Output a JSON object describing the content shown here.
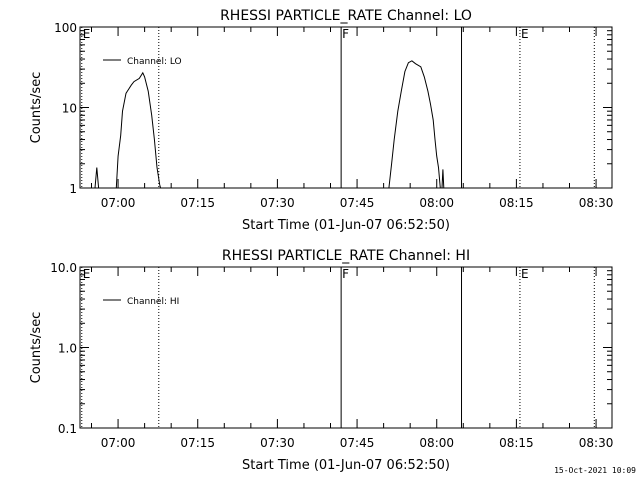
{
  "stamp": "15-Oct-2021 10:09",
  "chart_data": [
    {
      "type": "line",
      "title": "RHESSI PARTICLE_RATE Channel: LO",
      "xlabel": "Start Time (01-Jun-07 06:52:50)",
      "ylabel": "Counts/sec",
      "yscale": "log",
      "ylim": [
        1,
        100
      ],
      "xlim": [
        "06:52:50",
        "08:33:00"
      ],
      "y_ticks": [
        "1",
        "10",
        "100"
      ],
      "x_ticks": [
        "07:00",
        "07:15",
        "07:30",
        "07:45",
        "08:00",
        "08:15",
        "08:30"
      ],
      "legend": "Channel: LO",
      "legend_position": "top-left",
      "markers": [
        {
          "time": "06:53:10",
          "label": "E",
          "style": "dotted"
        },
        {
          "time": "07:07:40",
          "label": "",
          "style": "dotted"
        },
        {
          "time": "07:42:00",
          "label": "F",
          "style": "solid"
        },
        {
          "time": "08:04:40",
          "label": "",
          "style": "solid"
        },
        {
          "time": "08:15:40",
          "label": "E",
          "style": "dotted"
        },
        {
          "time": "08:29:40",
          "label": "",
          "style": "dotted"
        }
      ],
      "series": [
        {
          "name": "Channel: LO",
          "segments": [
            [
              [
                "06:55:40",
                0.9
              ],
              [
                "06:56:00",
                1.8
              ],
              [
                "06:56:20",
                0.9
              ]
            ],
            [
              [
                "06:59:40",
                0.9
              ],
              [
                "07:00:00",
                2.5
              ],
              [
                "07:00:30",
                4.5
              ],
              [
                "07:00:50",
                9
              ],
              [
                "07:01:30",
                15
              ],
              [
                "07:02:30",
                19
              ],
              [
                "07:03:00",
                21
              ],
              [
                "07:04:00",
                23
              ],
              [
                "07:04:40",
                27
              ],
              [
                "07:05:00",
                24
              ],
              [
                "07:05:40",
                16
              ],
              [
                "07:06:20",
                8
              ],
              [
                "07:06:50",
                4
              ],
              [
                "07:07:20",
                1.8
              ],
              [
                "07:07:50",
                1.1
              ],
              [
                "07:08:00",
                0.9
              ]
            ],
            [
              [
                "07:51:00",
                0.9
              ],
              [
                "07:51:30",
                2
              ],
              [
                "07:52:00",
                4
              ],
              [
                "07:52:40",
                9
              ],
              [
                "07:53:20",
                16
              ],
              [
                "07:54:00",
                28
              ],
              [
                "07:54:40",
                36
              ],
              [
                "07:55:20",
                38
              ],
              [
                "07:56:00",
                35
              ],
              [
                "07:57:00",
                32
              ],
              [
                "07:57:40",
                24
              ],
              [
                "07:58:20",
                16
              ],
              [
                "07:58:50",
                11
              ],
              [
                "07:59:20",
                7
              ],
              [
                "07:59:40",
                4
              ],
              [
                "08:00:00",
                2.5
              ],
              [
                "08:00:20",
                1.8
              ],
              [
                "08:00:40",
                0.9
              ]
            ],
            [
              [
                "08:01:00",
                0.9
              ],
              [
                "08:01:10",
                1.7
              ],
              [
                "08:01:20",
                0.9
              ]
            ]
          ]
        }
      ]
    },
    {
      "type": "line",
      "title": "RHESSI PARTICLE_RATE Channel: HI",
      "xlabel": "Start Time (01-Jun-07 06:52:50)",
      "ylabel": "Counts/sec",
      "yscale": "log",
      "ylim": [
        0.1,
        10
      ],
      "xlim": [
        "06:52:50",
        "08:33:00"
      ],
      "y_ticks": [
        "0.1",
        "1.0",
        "10.0"
      ],
      "x_ticks": [
        "07:00",
        "07:15",
        "07:30",
        "07:45",
        "08:00",
        "08:15",
        "08:30"
      ],
      "legend": "Channel: HI",
      "legend_position": "top-left",
      "markers": [
        {
          "time": "06:53:10",
          "label": "E",
          "style": "dotted"
        },
        {
          "time": "07:07:40",
          "label": "",
          "style": "dotted"
        },
        {
          "time": "07:42:00",
          "label": "F",
          "style": "solid"
        },
        {
          "time": "08:04:40",
          "label": "",
          "style": "solid"
        },
        {
          "time": "08:15:40",
          "label": "E",
          "style": "dotted"
        },
        {
          "time": "08:29:40",
          "label": "",
          "style": "dotted"
        }
      ],
      "series": [
        {
          "name": "Channel: HI",
          "segments": []
        }
      ]
    }
  ]
}
